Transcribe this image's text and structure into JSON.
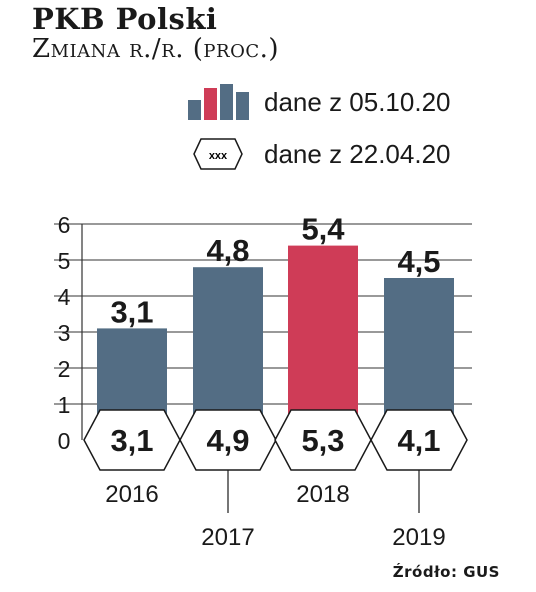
{
  "header": {
    "title": "PKB Polski",
    "subtitle": "Zmiana r./r. (proc.)"
  },
  "legend": {
    "bars_label": "dane z 05.10.20",
    "hex_label": "dane z 22.04.20",
    "hex_text": "xxx",
    "bar_colors": [
      "#536d84",
      "#cf3c57",
      "#536d84"
    ]
  },
  "source": "Źródło: GUS",
  "colors": {
    "bar": "#536d84",
    "highlight": "#cf3c57",
    "grid": "#333333",
    "hex_fill": "#ffffff"
  },
  "chart_data": {
    "type": "bar",
    "categories": [
      "2016",
      "2017",
      "2018",
      "2019"
    ],
    "series": [
      {
        "values": [
          3.1,
          4.8,
          5.4,
          4.5
        ]
      },
      {
        "values": [
          3.1,
          4.9,
          5.3,
          4.1
        ]
      }
    ],
    "bar_labels": [
      "3,1",
      "4,8",
      "5,4",
      "4,5"
    ],
    "hex_labels": [
      "3,1",
      "4,9",
      "5,3",
      "4,1"
    ],
    "highlight_index": 2,
    "y_ticks": [
      "0",
      "1",
      "2",
      "3",
      "4",
      "5",
      "6"
    ],
    "ylim": [
      0,
      6
    ],
    "grid": true
  }
}
